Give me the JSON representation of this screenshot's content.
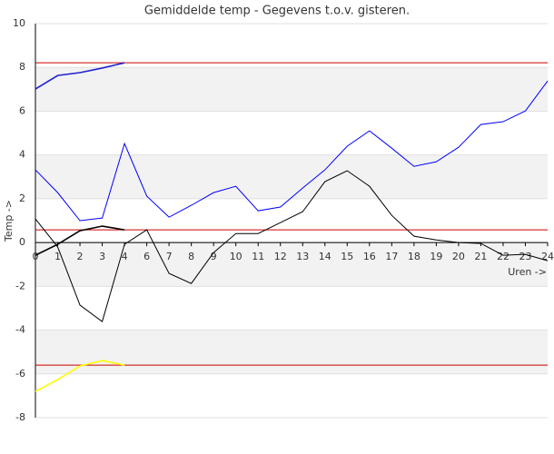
{
  "chart_data": {
    "type": "line",
    "title": "Gemiddelde temp - Gegevens t.o.v. gisteren.",
    "y_label": "Temp ->",
    "x_label": "Uren ->",
    "categories": [
      "0",
      "1",
      "2",
      "3",
      "4",
      "6",
      "7",
      "8",
      "9",
      "10",
      "11",
      "12",
      "13",
      "14",
      "15",
      "16",
      "17",
      "18",
      "19",
      "20",
      "21",
      "22",
      "23",
      "24"
    ],
    "ylim": [
      -8,
      10
    ],
    "yticks": [
      -8,
      -6,
      -4,
      -2,
      0,
      2,
      4,
      6,
      8,
      10
    ],
    "grid": true,
    "series": [
      {
        "color": "#0000ff",
        "values": [
          3.32,
          2.28,
          1.0,
          1.12,
          4.52,
          2.12,
          1.16,
          1.7,
          2.28,
          2.57,
          1.45,
          1.62,
          2.49,
          3.32,
          4.4,
          5.1,
          4.31,
          3.48,
          3.69,
          4.35,
          5.39,
          5.52,
          6.01,
          7.38
        ]
      },
      {
        "color": "#000000",
        "values": [
          1.08,
          -0.2,
          -2.86,
          -3.61,
          -0.08,
          0.58,
          -1.41,
          -1.87,
          -0.46,
          0.41,
          0.41,
          0.91,
          1.41,
          2.78,
          3.28,
          2.57,
          1.24,
          0.29,
          0.12,
          0,
          -0.04,
          -0.58,
          -0.54,
          -0.83
        ]
      },
      {
        "color": "#2020d0",
        "values": [
          7.01,
          7.63,
          7.76,
          7.97,
          8.21,
          null,
          null,
          null,
          null,
          null,
          null,
          null,
          null,
          null,
          null,
          null,
          null,
          null,
          null,
          null,
          null,
          null,
          null,
          null
        ]
      },
      {
        "color": "#000000",
        "values": [
          -0.58,
          -0.08,
          0.54,
          0.75,
          0.58,
          null,
          null,
          null,
          null,
          null,
          null,
          null,
          null,
          null,
          null,
          null,
          null,
          null,
          null,
          null,
          null,
          null,
          null,
          null
        ]
      },
      {
        "color": "#ffff00",
        "values": [
          -6.8,
          -6.26,
          -5.64,
          -5.39,
          -5.6,
          null,
          null,
          null,
          null,
          null,
          null,
          null,
          null,
          null,
          null,
          null,
          null,
          null,
          null,
          null,
          null,
          null,
          null,
          null
        ]
      }
    ],
    "reference_lines": [
      8.21,
      0.58,
      -5.6
    ],
    "reference_color": "#cc0000"
  }
}
